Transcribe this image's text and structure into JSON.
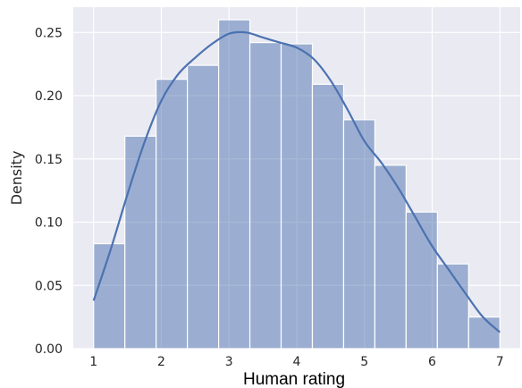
{
  "chart_data": {
    "type": "bar",
    "xlabel": "Human rating",
    "ylabel": "Density",
    "xlim": [
      0.7,
      7.3
    ],
    "ylim": [
      0,
      0.27
    ],
    "x_ticks": [
      1,
      2,
      3,
      4,
      5,
      6,
      7
    ],
    "y_ticks": [
      0.0,
      0.05,
      0.1,
      0.15,
      0.2,
      0.25
    ],
    "x_tick_labels": [
      "1",
      "2",
      "3",
      "4",
      "5",
      "6",
      "7"
    ],
    "y_tick_labels": [
      "0.00",
      "0.05",
      "0.10",
      "0.15",
      "0.20",
      "0.25"
    ],
    "grid": true,
    "histogram": {
      "bin_edges": [
        1.0,
        1.4615,
        1.9231,
        2.3846,
        2.8462,
        3.3077,
        3.7692,
        4.2308,
        4.6923,
        5.1538,
        5.6154,
        6.0769,
        6.5385,
        7.0
      ],
      "density": [
        0.083,
        0.168,
        0.213,
        0.224,
        0.26,
        0.242,
        0.241,
        0.209,
        0.181,
        0.145,
        0.108,
        0.067,
        0.025
      ]
    },
    "kde": {
      "x": [
        1.0,
        1.25,
        1.5,
        1.75,
        2.0,
        2.25,
        2.5,
        2.75,
        3.0,
        3.25,
        3.5,
        3.75,
        4.0,
        4.25,
        4.5,
        4.75,
        5.0,
        5.25,
        5.5,
        5.75,
        6.0,
        6.25,
        6.5,
        6.75,
        7.0
      ],
      "y": [
        0.038,
        0.078,
        0.122,
        0.163,
        0.196,
        0.217,
        0.23,
        0.241,
        0.249,
        0.25,
        0.246,
        0.242,
        0.238,
        0.229,
        0.212,
        0.189,
        0.164,
        0.147,
        0.127,
        0.104,
        0.081,
        0.062,
        0.043,
        0.025,
        0.013
      ]
    },
    "colors": {
      "background": "#eaeaf2",
      "grid": "#ffffff",
      "bar_fill": "#4c72b0",
      "bar_opacity": 0.5,
      "bar_edge": "#ffffff",
      "kde_line": "#4c72b0"
    }
  }
}
